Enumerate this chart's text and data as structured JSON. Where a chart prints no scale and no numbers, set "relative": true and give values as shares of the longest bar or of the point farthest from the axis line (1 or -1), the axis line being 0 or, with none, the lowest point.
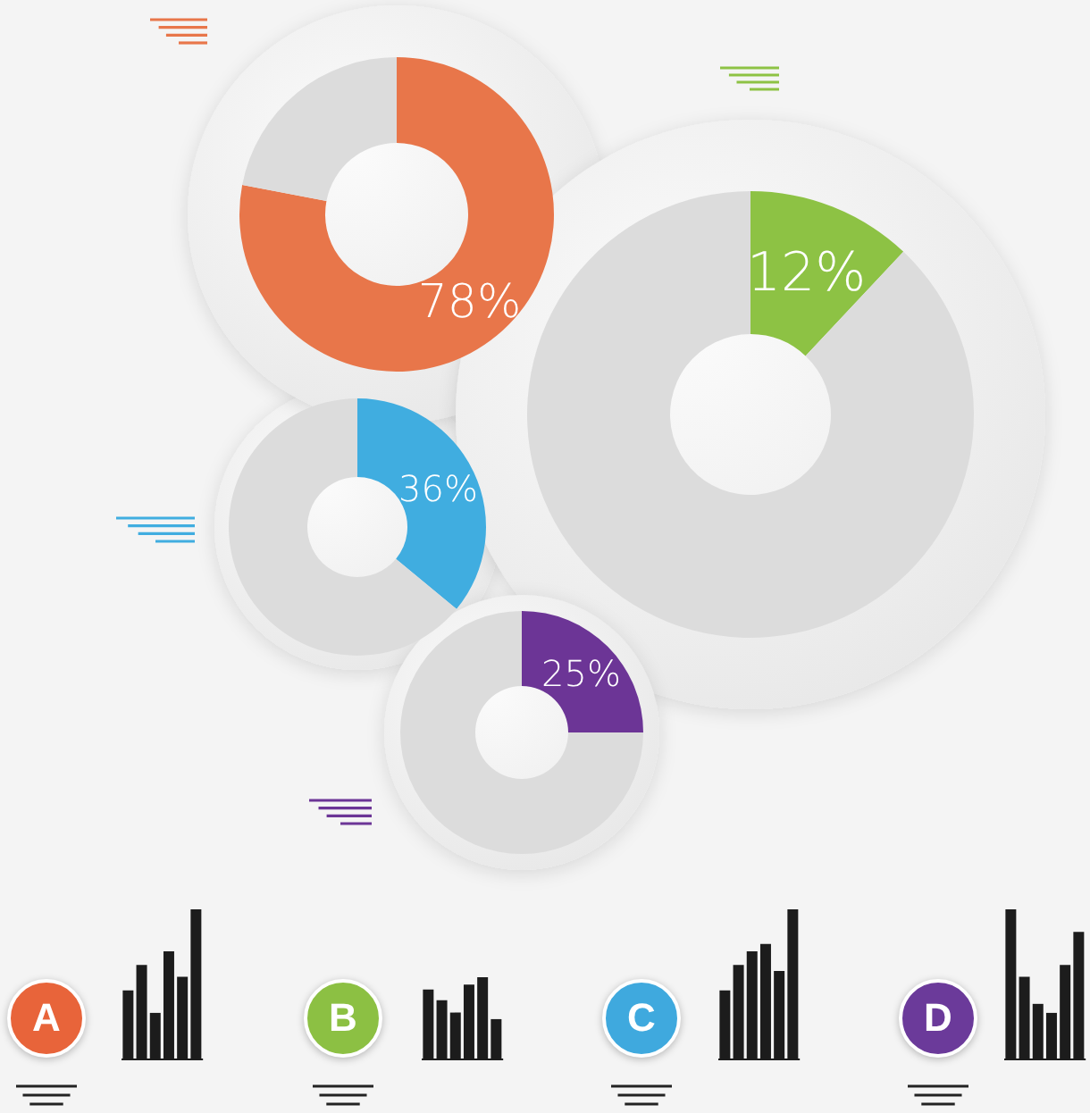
{
  "chart_data": [
    {
      "type": "donut",
      "categories": [
        null,
        null
      ],
      "values": [
        78,
        22
      ],
      "colors": [
        "#e8764a",
        "#dcdcdc"
      ],
      "value_labels": [
        "78%",
        null
      ]
    },
    {
      "type": "donut",
      "categories": [
        null,
        null
      ],
      "values": [
        12,
        88
      ],
      "colors": [
        "#8dc244",
        "#dcdcdc"
      ],
      "value_labels": [
        "12%",
        null
      ]
    },
    {
      "type": "donut",
      "categories": [
        null,
        null
      ],
      "values": [
        36,
        64
      ],
      "colors": [
        "#40ade0",
        "#dcdcdc"
      ],
      "value_labels": [
        "36%",
        null
      ]
    },
    {
      "type": "donut",
      "categories": [
        null,
        null
      ],
      "values": [
        25,
        75
      ],
      "colors": [
        "#6c3596",
        "#dcdcdc"
      ],
      "value_labels": [
        "25%",
        null
      ]
    },
    {
      "type": "bar",
      "title": "A",
      "categories": [
        null,
        null,
        null,
        null,
        null,
        null
      ],
      "values": [
        0.46,
        0.63,
        0.31,
        0.72,
        0.55,
        1
      ],
      "color": "#1c1c1c",
      "relative": true
    },
    {
      "type": "bar",
      "title": "B",
      "categories": [
        null,
        null,
        null,
        null,
        null,
        null
      ],
      "values": [
        0.85,
        0.72,
        0.57,
        0.91,
        1,
        0.49
      ],
      "color": "#1c1c1c",
      "relative": true
    },
    {
      "type": "bar",
      "title": "C",
      "categories": [
        null,
        null,
        null,
        null,
        null,
        null
      ],
      "values": [
        0.46,
        0.63,
        0.72,
        0.77,
        0.59,
        1
      ],
      "color": "#1c1c1c",
      "relative": true
    },
    {
      "type": "bar",
      "title": "D",
      "categories": [
        null,
        null,
        null,
        null,
        null,
        null
      ],
      "values": [
        1,
        0.55,
        0.37,
        0.31,
        0.63,
        0.85
      ],
      "color": "#1c1c1c",
      "relative": true
    }
  ]
}
